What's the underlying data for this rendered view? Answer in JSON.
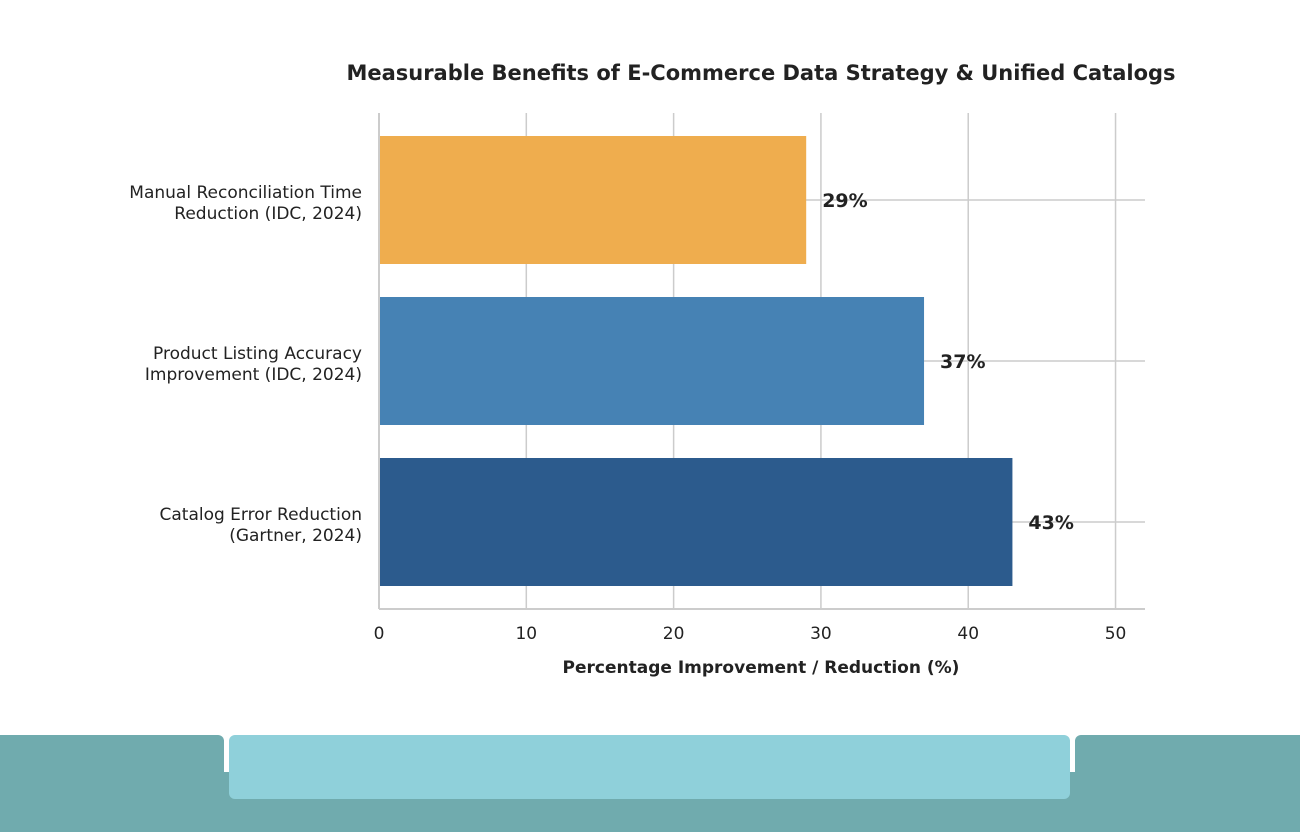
{
  "chart_data": {
    "type": "bar",
    "orientation": "horizontal",
    "title": "Measurable Benefits of E-Commerce Data Strategy & Unified Catalogs",
    "xlabel": "Percentage Improvement / Reduction (%)",
    "ylabel": "",
    "xlim": [
      0,
      52
    ],
    "xticks": [
      "0",
      "10",
      "20",
      "30",
      "40",
      "50"
    ],
    "grid": true,
    "categories": [
      [
        "Manual Reconciliation Time",
        "Reduction (IDC, 2024)"
      ],
      [
        "Product Listing Accuracy",
        "Improvement (IDC, 2024)"
      ],
      [
        "Catalog Error Reduction",
        "(Gartner, 2024)"
      ]
    ],
    "values": [
      29,
      37,
      43
    ],
    "value_labels": [
      "29%",
      "37%",
      "43%"
    ],
    "colors": [
      "#efad4e",
      "#4682b4",
      "#2c5b8d"
    ]
  },
  "colors": {
    "footer_dark": "#70abae",
    "footer_light": "#8fd0da",
    "grid": "#cccccc"
  }
}
